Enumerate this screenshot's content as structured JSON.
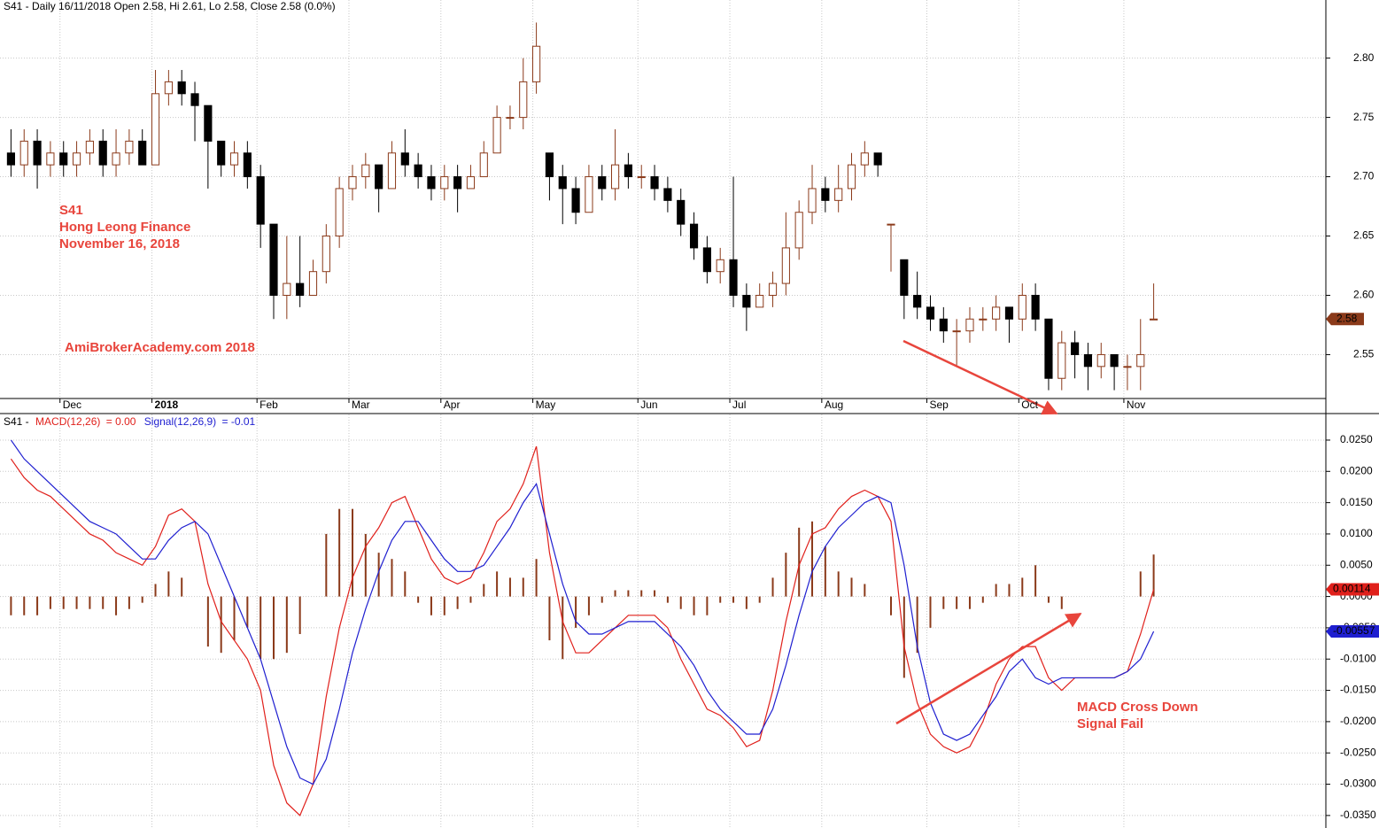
{
  "chart_data": [
    {
      "type": "candlestick",
      "title": "S41 - Daily 16/11/2018 Open 2.58, Hi 2.61, Lo 2.58, Close 2.58 (0.0%)",
      "annotations": [
        "S41",
        "Hong Leong Finance",
        "November 16, 2018",
        "AmiBrokerAcademy.com  2018"
      ],
      "categories": [
        null,
        null,
        null,
        null,
        "Dec",
        null,
        null,
        null,
        null,
        null,
        null,
        "2018",
        null,
        null,
        null,
        null,
        null,
        null,
        null,
        "Feb",
        null,
        null,
        null,
        null,
        null,
        null,
        "Mar",
        null,
        null,
        null,
        null,
        null,
        null,
        "Apr",
        null,
        null,
        null,
        null,
        null,
        null,
        "May",
        null,
        null,
        null,
        null,
        null,
        null,
        null,
        "Jun",
        null,
        null,
        null,
        null,
        null,
        null,
        "Jul",
        null,
        null,
        null,
        null,
        null,
        null,
        "Aug",
        null,
        null,
        null,
        null,
        null,
        null,
        null,
        "Sep",
        null,
        null,
        null,
        null,
        null,
        null,
        "Oct",
        null,
        null,
        null,
        null,
        null,
        null,
        null,
        "Nov",
        null,
        null
      ],
      "open": [
        2.72,
        2.71,
        2.73,
        2.71,
        2.72,
        2.71,
        2.72,
        2.73,
        2.71,
        2.72,
        2.73,
        2.71,
        2.77,
        2.78,
        2.77,
        2.76,
        2.73,
        2.71,
        2.72,
        2.7,
        2.66,
        2.6,
        2.61,
        2.6,
        2.62,
        2.65,
        2.69,
        2.7,
        2.71,
        2.69,
        2.72,
        2.71,
        2.7,
        2.69,
        2.7,
        2.69,
        2.7,
        2.72,
        2.75,
        2.75,
        2.78,
        2.72,
        2.7,
        2.69,
        2.67,
        2.7,
        2.69,
        2.71,
        2.7,
        2.7,
        2.69,
        2.68,
        2.66,
        2.64,
        2.62,
        2.63,
        2.6,
        2.59,
        2.6,
        2.61,
        2.64,
        2.67,
        2.69,
        2.68,
        2.69,
        2.71,
        2.72,
        2.66,
        2.63,
        2.6,
        2.59,
        2.58,
        2.57,
        2.57,
        2.58,
        2.58,
        2.59,
        2.58,
        2.6,
        2.58,
        2.53,
        2.56,
        2.55,
        2.54,
        2.55,
        2.54,
        2.54,
        2.58
      ],
      "high": [
        2.74,
        2.74,
        2.74,
        2.73,
        2.73,
        2.73,
        2.74,
        2.74,
        2.74,
        2.74,
        2.74,
        2.79,
        2.79,
        2.79,
        2.78,
        2.76,
        2.73,
        2.73,
        2.73,
        2.71,
        2.66,
        2.65,
        2.65,
        2.63,
        2.66,
        2.7,
        2.71,
        2.72,
        2.71,
        2.73,
        2.74,
        2.72,
        2.71,
        2.71,
        2.71,
        2.71,
        2.73,
        2.76,
        2.76,
        2.8,
        2.83,
        2.72,
        2.71,
        2.7,
        2.71,
        2.71,
        2.74,
        2.72,
        2.71,
        2.71,
        2.7,
        2.69,
        2.67,
        2.65,
        2.64,
        2.7,
        2.61,
        2.61,
        2.62,
        2.67,
        2.68,
        2.71,
        2.7,
        2.71,
        2.72,
        2.73,
        2.72,
        2.66,
        2.63,
        2.62,
        2.6,
        2.59,
        2.58,
        2.59,
        2.59,
        2.6,
        2.59,
        2.61,
        2.61,
        2.58,
        2.57,
        2.57,
        2.56,
        2.56,
        2.55,
        2.55,
        2.58,
        2.61
      ],
      "low": [
        2.7,
        2.7,
        2.69,
        2.7,
        2.7,
        2.7,
        2.71,
        2.7,
        2.7,
        2.71,
        2.71,
        2.71,
        2.76,
        2.76,
        2.73,
        2.69,
        2.7,
        2.7,
        2.69,
        2.64,
        2.58,
        2.58,
        2.59,
        2.6,
        2.61,
        2.64,
        2.68,
        2.69,
        2.67,
        2.69,
        2.7,
        2.69,
        2.68,
        2.68,
        2.67,
        2.69,
        2.7,
        2.72,
        2.74,
        2.74,
        2.77,
        2.68,
        2.66,
        2.66,
        2.67,
        2.68,
        2.68,
        2.69,
        2.69,
        2.68,
        2.67,
        2.65,
        2.63,
        2.61,
        2.61,
        2.59,
        2.57,
        2.59,
        2.59,
        2.6,
        2.63,
        2.66,
        2.67,
        2.67,
        2.68,
        2.7,
        2.7,
        2.62,
        2.58,
        2.58,
        2.57,
        2.56,
        2.54,
        2.56,
        2.57,
        2.57,
        2.56,
        2.57,
        2.57,
        2.52,
        2.52,
        2.53,
        2.52,
        2.53,
        2.52,
        2.52,
        2.52,
        2.58
      ],
      "close": [
        2.71,
        2.73,
        2.71,
        2.72,
        2.71,
        2.72,
        2.73,
        2.71,
        2.72,
        2.73,
        2.71,
        2.77,
        2.78,
        2.77,
        2.76,
        2.73,
        2.71,
        2.72,
        2.7,
        2.66,
        2.6,
        2.61,
        2.6,
        2.62,
        2.65,
        2.69,
        2.7,
        2.71,
        2.69,
        2.72,
        2.71,
        2.7,
        2.69,
        2.7,
        2.69,
        2.7,
        2.72,
        2.75,
        2.75,
        2.78,
        2.81,
        2.7,
        2.69,
        2.67,
        2.7,
        2.69,
        2.71,
        2.7,
        2.7,
        2.69,
        2.68,
        2.66,
        2.64,
        2.62,
        2.63,
        2.6,
        2.59,
        2.6,
        2.61,
        2.64,
        2.67,
        2.69,
        2.68,
        2.69,
        2.71,
        2.72,
        2.71,
        2.66,
        2.6,
        2.59,
        2.58,
        2.57,
        2.57,
        2.58,
        2.58,
        2.59,
        2.58,
        2.6,
        2.58,
        2.53,
        2.56,
        2.55,
        2.54,
        2.55,
        2.54,
        2.54,
        2.55,
        2.58
      ],
      "up_color": "#8b3a1a",
      "down_color": "#000000",
      "ylim": [
        2.513,
        2.849
      ],
      "yticks": [
        2.55,
        {
          "value": 2.6,
          "label": "2.60"
        },
        2.65,
        {
          "value": 2.7,
          "label": "2.70"
        },
        2.75,
        {
          "value": 2.8,
          "label": "2.80"
        }
      ],
      "grid": true
    },
    {
      "type": "macd",
      "title": "S41 -",
      "annotations": [
        "MACD Cross Down",
        "Signal Fail"
      ],
      "series": [
        {
          "name": "MACD(12,26)",
          "legend_value": "= 0.00",
          "color": "#e0201b",
          "values": [
            0.022,
            0.019,
            0.017,
            0.016,
            0.014,
            0.012,
            0.01,
            0.009,
            0.007,
            0.006,
            0.005,
            0.008,
            0.013,
            0.014,
            0.012,
            0.002,
            -0.004,
            -0.007,
            -0.01,
            -0.015,
            -0.027,
            -0.033,
            -0.035,
            -0.03,
            -0.016,
            -0.005,
            0.003,
            0.008,
            0.011,
            0.015,
            0.016,
            0.011,
            0.006,
            0.003,
            0.002,
            0.003,
            0.007,
            0.012,
            0.014,
            0.018,
            0.024,
            0.007,
            -0.004,
            -0.009,
            -0.009,
            -0.007,
            -0.005,
            -0.003,
            -0.003,
            -0.003,
            -0.005,
            -0.01,
            -0.014,
            -0.018,
            -0.019,
            -0.021,
            -0.024,
            -0.023,
            -0.015,
            -0.004,
            0.005,
            0.01,
            0.011,
            0.014,
            0.016,
            0.017,
            0.016,
            0.012,
            -0.008,
            -0.017,
            -0.022,
            -0.024,
            -0.025,
            -0.024,
            -0.02,
            -0.014,
            -0.01,
            -0.008,
            -0.008,
            -0.013,
            -0.015,
            -0.013,
            -0.013,
            -0.013,
            -0.013,
            -0.012,
            -0.006,
            0.00114
          ]
        },
        {
          "name": "Signal(12,26,9)",
          "legend_value": "= -0.01",
          "color": "#1f1fd0",
          "values": [
            0.025,
            0.022,
            0.02,
            0.018,
            0.016,
            0.014,
            0.012,
            0.011,
            0.01,
            0.008,
            0.006,
            0.006,
            0.009,
            0.011,
            0.012,
            0.01,
            0.005,
            0.0,
            -0.005,
            -0.01,
            -0.017,
            -0.024,
            -0.029,
            -0.03,
            -0.026,
            -0.018,
            -0.009,
            -0.002,
            0.004,
            0.009,
            0.012,
            0.012,
            0.009,
            0.006,
            0.004,
            0.004,
            0.005,
            0.008,
            0.011,
            0.015,
            0.018,
            0.01,
            0.002,
            -0.004,
            -0.006,
            -0.006,
            -0.005,
            -0.004,
            -0.004,
            -0.004,
            -0.006,
            -0.008,
            -0.011,
            -0.015,
            -0.018,
            -0.02,
            -0.022,
            -0.022,
            -0.018,
            -0.011,
            -0.003,
            0.004,
            0.008,
            0.011,
            0.013,
            0.015,
            0.016,
            0.015,
            0.005,
            -0.008,
            -0.017,
            -0.022,
            -0.023,
            -0.022,
            -0.019,
            -0.016,
            -0.012,
            -0.01,
            -0.013,
            -0.014,
            -0.013,
            -0.013,
            -0.013,
            -0.013,
            -0.013,
            -0.012,
            -0.01,
            -0.00557
          ]
        }
      ],
      "histogram": {
        "color": "#8b3a1a",
        "values": [
          -0.003,
          -0.003,
          -0.003,
          -0.002,
          -0.002,
          -0.002,
          -0.002,
          -0.002,
          -0.003,
          -0.002,
          -0.001,
          0.002,
          0.004,
          0.003,
          0.0,
          -0.008,
          -0.009,
          -0.007,
          -0.005,
          -0.01,
          -0.01,
          -0.009,
          -0.006,
          0.0,
          0.01,
          0.014,
          0.014,
          0.01,
          0.007,
          0.006,
          0.004,
          -0.001,
          -0.003,
          -0.003,
          -0.002,
          -0.001,
          0.002,
          0.004,
          0.003,
          0.003,
          0.006,
          -0.007,
          -0.01,
          -0.005,
          -0.003,
          -0.001,
          0.001,
          0.001,
          0.001,
          0.001,
          -0.001,
          -0.002,
          -0.003,
          -0.003,
          -0.001,
          -0.001,
          -0.002,
          -0.001,
          0.003,
          0.007,
          0.011,
          0.012,
          0.008,
          0.004,
          0.003,
          0.002,
          0.0,
          -0.003,
          -0.013,
          -0.009,
          -0.005,
          -0.002,
          -0.002,
          -0.002,
          -0.001,
          0.002,
          0.002,
          0.003,
          0.005,
          -0.001,
          -0.002,
          0.0,
          0.0,
          0.0,
          0.0,
          0.0,
          0.004,
          0.00671
        ]
      },
      "ylim": [
        -0.037,
        0.0291
      ],
      "yticks": [
        {
          "value": -0.035,
          "label": "-0.0350"
        },
        {
          "value": -0.03,
          "label": "-0.0300"
        },
        {
          "value": -0.025,
          "label": "-0.0250"
        },
        {
          "value": -0.02,
          "label": "-0.0200"
        },
        {
          "value": -0.015,
          "label": "-0.0150"
        },
        {
          "value": -0.01,
          "label": "-0.0100"
        },
        {
          "value": -0.005,
          "label": "-0.0050"
        },
        {
          "value": 0,
          "label": "0.0000"
        },
        {
          "value": 0.005,
          "label": "0.0050"
        },
        {
          "value": 0.01,
          "label": "0.0100"
        },
        {
          "value": 0.015,
          "label": "0.0150"
        },
        {
          "value": 0.02,
          "label": "0.0200"
        },
        {
          "value": 0.025,
          "label": "0.0250"
        }
      ],
      "grid": true
    }
  ]
}
